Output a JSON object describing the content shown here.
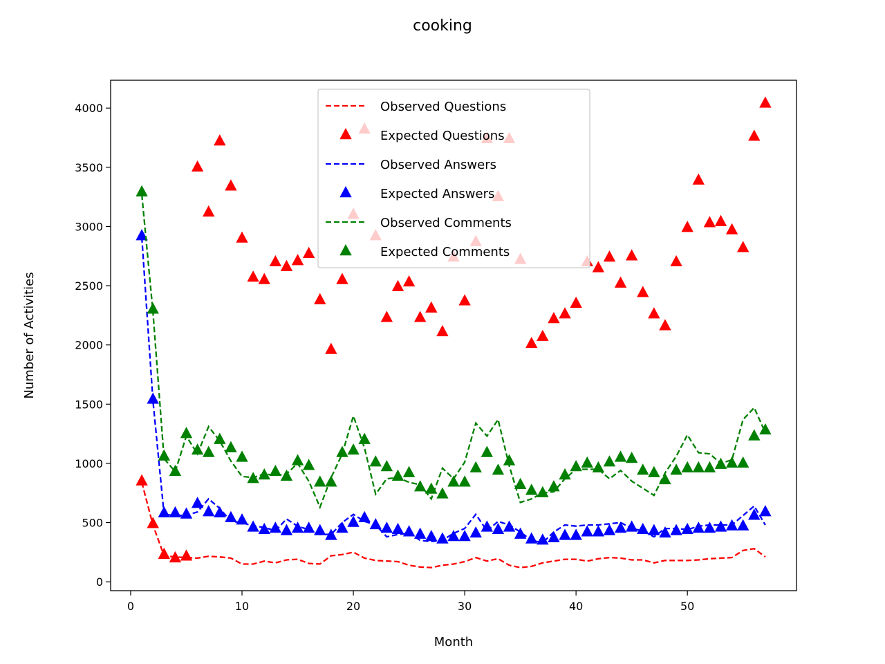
{
  "chart_data": {
    "type": "line",
    "title": "cooking",
    "xlabel": "Month",
    "ylabel": "Number of Activities",
    "xlim": [
      -1.8,
      59.8
    ],
    "ylim": [
      -75,
      4235
    ],
    "xticks": [
      0,
      10,
      20,
      30,
      40,
      50
    ],
    "yticks": [
      0,
      500,
      1000,
      1500,
      2000,
      2500,
      3000,
      3500,
      4000
    ],
    "grid": false,
    "legend_position": "top-center",
    "x": [
      1,
      2,
      3,
      4,
      5,
      6,
      7,
      8,
      9,
      10,
      11,
      12,
      13,
      14,
      15,
      16,
      17,
      18,
      19,
      20,
      21,
      22,
      23,
      24,
      25,
      26,
      27,
      28,
      29,
      30,
      31,
      32,
      33,
      34,
      35,
      36,
      37,
      38,
      39,
      40,
      41,
      42,
      43,
      44,
      45,
      46,
      47,
      48,
      49,
      50,
      51,
      52,
      53,
      54,
      55,
      56,
      57
    ],
    "series": [
      {
        "name": "Observed Questions",
        "style": "dashed-line",
        "color": "#ff0000",
        "values": [
          840,
          480,
          220,
          210,
          205,
          200,
          215,
          210,
          200,
          150,
          150,
          175,
          160,
          185,
          190,
          155,
          150,
          220,
          230,
          250,
          200,
          180,
          175,
          170,
          140,
          125,
          120,
          140,
          150,
          170,
          205,
          175,
          195,
          140,
          120,
          130,
          160,
          175,
          190,
          190,
          175,
          195,
          205,
          200,
          185,
          185,
          160,
          180,
          180,
          180,
          185,
          195,
          200,
          205,
          265,
          280,
          210
        ]
      },
      {
        "name": "Expected Questions",
        "style": "triangle-markers",
        "color": "#ff0000",
        "values": [
          850,
          490,
          230,
          200,
          215,
          3500,
          3120,
          3720,
          3340,
          2900,
          2570,
          2550,
          2700,
          2660,
          2710,
          2770,
          2380,
          1960,
          2550,
          3100,
          3820,
          2920,
          2230,
          2490,
          2530,
          2230,
          2310,
          2110,
          2740,
          2370,
          2870,
          3740,
          3250,
          3740,
          2720,
          2010,
          2070,
          2220,
          2260,
          2350,
          2700,
          2650,
          2740,
          2520,
          2750,
          2440,
          2260,
          2160,
          2700,
          2990,
          3390,
          3030,
          3040,
          2970,
          2820,
          3760,
          4040
        ]
      },
      {
        "name": "Observed Answers",
        "style": "dashed-line",
        "color": "#0000ff",
        "values": [
          2910,
          1530,
          570,
          560,
          560,
          590,
          700,
          620,
          510,
          500,
          470,
          460,
          430,
          530,
          470,
          440,
          400,
          400,
          500,
          570,
          510,
          480,
          380,
          400,
          410,
          350,
          340,
          350,
          410,
          450,
          570,
          430,
          510,
          480,
          420,
          350,
          330,
          420,
          480,
          470,
          480,
          480,
          490,
          500,
          450,
          430,
          380,
          450,
          450,
          440,
          470,
          480,
          480,
          480,
          560,
          640,
          480
        ]
      },
      {
        "name": "Expected Answers",
        "style": "triangle-markers",
        "color": "#0000ff",
        "values": [
          2920,
          1540,
          580,
          580,
          570,
          660,
          590,
          580,
          540,
          520,
          460,
          440,
          450,
          430,
          450,
          450,
          430,
          390,
          450,
          500,
          540,
          480,
          450,
          440,
          420,
          400,
          380,
          360,
          380,
          380,
          410,
          460,
          440,
          460,
          400,
          360,
          350,
          370,
          390,
          390,
          420,
          420,
          430,
          450,
          460,
          440,
          430,
          410,
          430,
          440,
          450,
          450,
          460,
          470,
          470,
          560,
          590
        ]
      },
      {
        "name": "Observed Comments",
        "style": "dashed-line",
        "color": "#008000",
        "values": [
          3270,
          2280,
          1040,
          930,
          1230,
          1080,
          1310,
          1190,
          1020,
          890,
          880,
          910,
          900,
          910,
          1000,
          850,
          630,
          880,
          1080,
          1400,
          1130,
          740,
          870,
          880,
          840,
          820,
          700,
          960,
          870,
          1010,
          1340,
          1230,
          1370,
          980,
          670,
          700,
          750,
          760,
          870,
          950,
          950,
          950,
          870,
          940,
          850,
          790,
          730,
          920,
          1060,
          1240,
          1090,
          1080,
          1000,
          1030,
          1370,
          1470,
          1260
        ]
      },
      {
        "name": "Expected Comments",
        "style": "triangle-markers",
        "color": "#008000",
        "values": [
          3290,
          2300,
          1060,
          930,
          1250,
          1110,
          1090,
          1200,
          1130,
          1050,
          870,
          900,
          930,
          890,
          1020,
          980,
          840,
          840,
          1090,
          1110,
          1200,
          1010,
          970,
          890,
          920,
          800,
          780,
          740,
          840,
          840,
          960,
          1090,
          940,
          1020,
          820,
          770,
          750,
          800,
          900,
          970,
          1000,
          960,
          1010,
          1050,
          1040,
          940,
          920,
          860,
          940,
          960,
          960,
          960,
          990,
          1000,
          1000,
          1230,
          1280
        ]
      }
    ]
  }
}
